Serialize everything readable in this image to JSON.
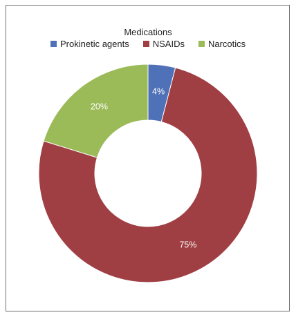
{
  "chart_data": {
    "type": "pie",
    "donut": true,
    "title": "Medications",
    "legend_position": "top",
    "categories": [
      "Prokinetic agents",
      "NSAIDs",
      "Narcotics"
    ],
    "values": [
      4,
      75,
      20
    ],
    "labels": [
      "4%",
      "75%",
      "20%"
    ],
    "colors": [
      "#4f71b8",
      "#a03f43",
      "#9bba58"
    ]
  }
}
